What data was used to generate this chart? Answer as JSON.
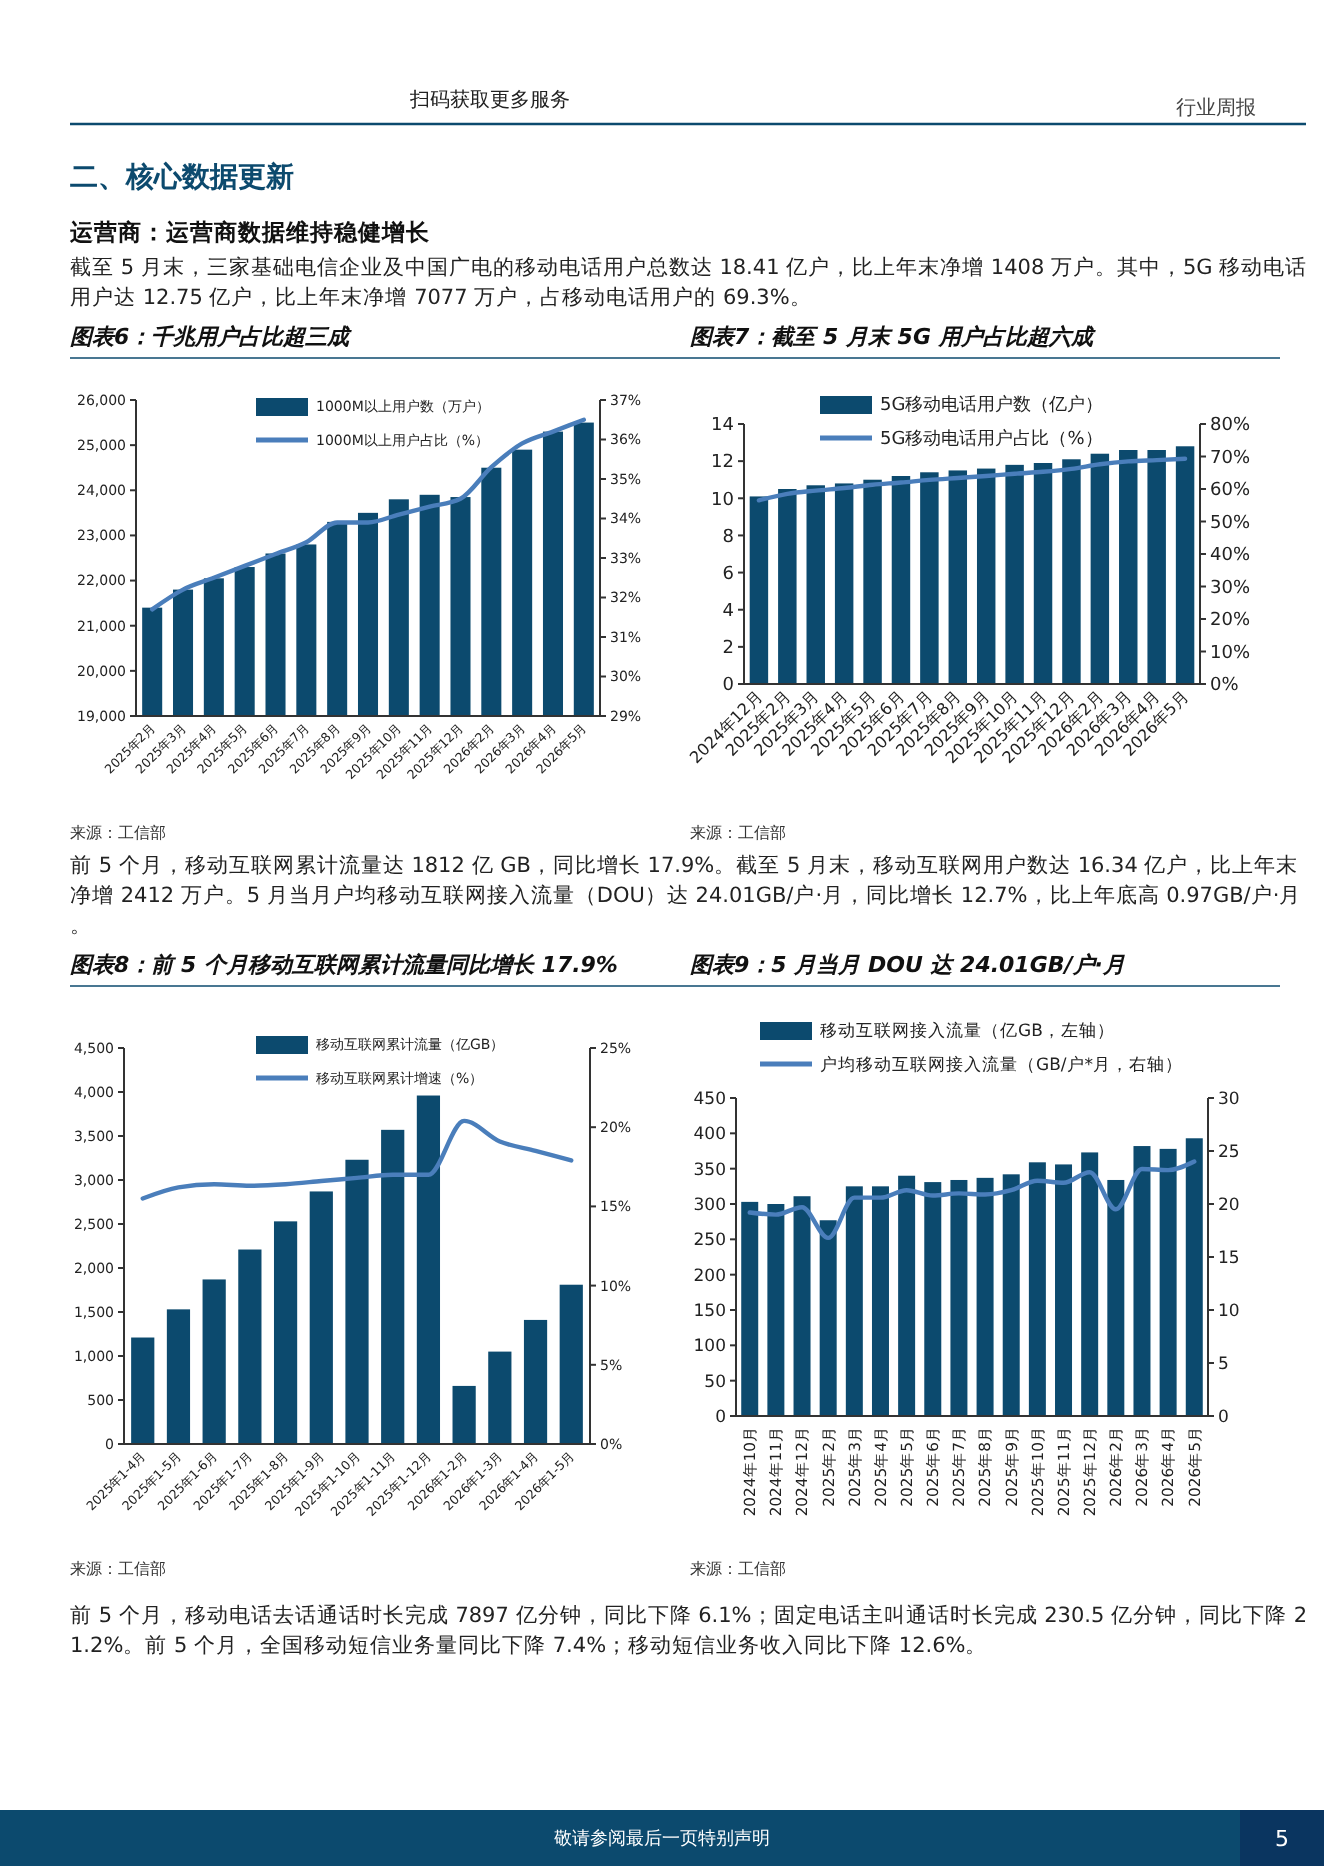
{
  "chart_data": [
    {
      "type": "other",
      "annotations": [
        "扫码获取更多服务",
        "行业周报",
        "二、核心数据更新",
        "运营商：运营商数据维持稳健增长",
        "截至 5 月末，三家基础电信企业及中国广电的移动电话用户总数达 18.41 亿户，比上年末净增 1408 万户。其中，5G 移动电话用户达 12.75 亿户，比上年末净增 7077 万户，占移动电话用户的 69.3%。"
      ]
    },
    {
      "type": "bar",
      "title": "图表6：千兆用户占比超三成",
      "annotations": [
        "来源：工信部"
      ],
      "categories": [
        "2025年2月",
        "2025年3月",
        "2025年4月",
        "2025年5月",
        "2025年6月",
        "2025年7月",
        "2025年8月",
        "2025年9月",
        "2025年10月",
        "2025年11月",
        "2025年12月",
        "2026年2月",
        "2026年3月",
        "2026年4月",
        "2026年5月"
      ],
      "series": [
        {
          "name": "1000M以上用户数（万户）",
          "type": "bar",
          "color": "#0c4a6e",
          "values": [
            21400,
            21800,
            22050,
            22300,
            22600,
            22800,
            23300,
            23500,
            23800,
            23900,
            23850,
            24500,
            24900,
            25300,
            25500
          ]
        },
        {
          "name": "1000M以上用户占比（%）",
          "type": "line",
          "axis": "y2",
          "color": "#4a7ebb",
          "values": [
            31.7,
            32.2,
            32.5,
            32.8,
            33.1,
            33.4,
            33.9,
            33.9,
            34.1,
            34.3,
            34.5,
            35.3,
            35.9,
            36.2,
            36.5
          ]
        }
      ],
      "ylim": [
        19000,
        26000
      ],
      "yticks": [
        {
          "value": 19000,
          "label": "19,000"
        },
        {
          "value": 20000,
          "label": "20,000"
        },
        {
          "value": 21000,
          "label": "21,000"
        },
        {
          "value": 22000,
          "label": "22,000"
        },
        {
          "value": 23000,
          "label": "23,000"
        },
        {
          "value": 24000,
          "label": "24,000"
        },
        {
          "value": 25000,
          "label": "25,000"
        },
        {
          "value": 26000,
          "label": "26,000"
        }
      ],
      "y2lim": [
        29,
        37
      ],
      "y2ticks": [
        {
          "value": 29,
          "label": "29%"
        },
        {
          "value": 30,
          "label": "30%"
        },
        {
          "value": 31,
          "label": "31%"
        },
        {
          "value": 32,
          "label": "32%"
        },
        {
          "value": 33,
          "label": "33%"
        },
        {
          "value": 34,
          "label": "34%"
        },
        {
          "value": 35,
          "label": "35%"
        },
        {
          "value": 36,
          "label": "36%"
        },
        {
          "value": 37,
          "label": "37%"
        }
      ],
      "legend": "top",
      "grid": false
    },
    {
      "type": "bar",
      "title": "图表7：截至 5 月末 5G 用户占比超六成",
      "annotations": [
        "来源：工信部"
      ],
      "categories": [
        "2024年12月",
        "2025年2月",
        "2025年3月",
        "2025年4月",
        "2025年5月",
        "2025年6月",
        "2025年7月",
        "2025年8月",
        "2025年9月",
        "2025年10月",
        "2025年11月",
        "2025年12月",
        "2026年2月",
        "2026年3月",
        "2026年4月",
        "2026年5月"
      ],
      "series": [
        {
          "name": "5G移动电话用户数（亿户）",
          "type": "bar",
          "color": "#0c4a6e",
          "values": [
            10.1,
            10.5,
            10.7,
            10.8,
            11,
            11.2,
            11.4,
            11.5,
            11.6,
            11.8,
            11.9,
            12.1,
            12.4,
            12.6,
            12.6,
            12.8
          ]
        },
        {
          "name": "5G移动电话用户占比（%）",
          "type": "line",
          "axis": "y2",
          "color": "#4a7ebb",
          "values": [
            56.5,
            58.5,
            59.5,
            60.3,
            61.3,
            62,
            62.8,
            63.4,
            64,
            64.7,
            65.3,
            66.2,
            67.6,
            68.5,
            68.9,
            69.3
          ]
        }
      ],
      "ylim": [
        0,
        14
      ],
      "yticks": [
        0,
        2,
        4,
        6,
        8,
        10,
        12,
        14
      ],
      "y2lim": [
        0,
        80
      ],
      "y2ticks": [
        {
          "value": 0,
          "label": "0%"
        },
        {
          "value": 10,
          "label": "10%"
        },
        {
          "value": 20,
          "label": "20%"
        },
        {
          "value": 30,
          "label": "30%"
        },
        {
          "value": 40,
          "label": "40%"
        },
        {
          "value": 50,
          "label": "50%"
        },
        {
          "value": 60,
          "label": "60%"
        },
        {
          "value": 70,
          "label": "70%"
        },
        {
          "value": 80,
          "label": "80%"
        }
      ],
      "legend": "top",
      "grid": false
    },
    {
      "type": "other",
      "annotations": [
        "前 5 个月，移动互联网累计流量达 1812 亿 GB，同比增长 17.9%。截至 5 月末，移动互联网用户数达 16.34 亿户，比上年末净增 2412 万户。5 月当月户均移动互联网接入流量（DOU）达 24.01GB/户·月，同比增长 12.7%，比上年底高 0.97GB/户·月。"
      ]
    },
    {
      "type": "bar",
      "title": "图表8：前 5 个月移动互联网累计流量同比增长 17.9%",
      "annotations": [
        "来源：工信部"
      ],
      "categories": [
        "2025年1-4月",
        "2025年1-5月",
        "2025年1-6月",
        "2025年1-7月",
        "2025年1-8月",
        "2025年1-9月",
        "2025年1-10月",
        "2025年1-11月",
        "2025年1-12月",
        "2026年1-2月",
        "2026年1-3月",
        "2026年1-4月",
        "2026年1-5月"
      ],
      "series": [
        {
          "name": "移动互联网累计流量（亿GB）",
          "type": "bar",
          "color": "#0c4a6e",
          "values": [
            1210,
            1530,
            1870,
            2210,
            2530,
            2870,
            3230,
            3570,
            3960,
            660,
            1050,
            1410,
            1810
          ]
        },
        {
          "name": "移动互联网累计增速（%）",
          "type": "line",
          "axis": "y2",
          "color": "#4a7ebb",
          "values": [
            15.5,
            16.2,
            16.4,
            16.3,
            16.4,
            16.6,
            16.8,
            17,
            17,
            20.4,
            19.1,
            18.5,
            17.9
          ]
        }
      ],
      "ylim": [
        0,
        4500
      ],
      "yticks": [
        0,
        500,
        {
          "value": 1000,
          "label": "1,000"
        },
        {
          "value": 1500,
          "label": "1,500"
        },
        {
          "value": 2000,
          "label": "2,000"
        },
        {
          "value": 2500,
          "label": "2,500"
        },
        {
          "value": 3000,
          "label": "3,000"
        },
        {
          "value": 3500,
          "label": "3,500"
        },
        {
          "value": 4000,
          "label": "4,000"
        },
        {
          "value": 4500,
          "label": "4,500"
        }
      ],
      "y2lim": [
        0,
        25
      ],
      "y2ticks": [
        {
          "value": 0,
          "label": "0%"
        },
        {
          "value": 5,
          "label": "5%"
        },
        {
          "value": 10,
          "label": "10%"
        },
        {
          "value": 15,
          "label": "15%"
        },
        {
          "value": 20,
          "label": "20%"
        },
        {
          "value": 25,
          "label": "25%"
        }
      ],
      "legend": "top",
      "grid": false
    },
    {
      "type": "bar",
      "title": "图表9：5 月当月 DOU 达 24.01GB/户·月",
      "annotations": [
        "来源：工信部"
      ],
      "categories": [
        "2024年10月",
        "2024年11月",
        "2024年12月",
        "2025年2月",
        "2025年3月",
        "2025年4月",
        "2025年5月",
        "2025年6月",
        "2025年7月",
        "2025年8月",
        "2025年9月",
        "2025年10月",
        "2025年11月",
        "2025年12月",
        "2026年2月",
        "2026年3月",
        "2026年4月",
        "2026年5月"
      ],
      "series": [
        {
          "name": "移动互联网接入流量（亿GB，左轴）",
          "type": "bar",
          "color": "#0c4a6e",
          "values": [
            303,
            300,
            311,
            277,
            325,
            325,
            340,
            331,
            334,
            337,
            342,
            359,
            356,
            373,
            334,
            382,
            378,
            393
          ]
        },
        {
          "name": "户均移动互联网接入流量（GB/户*月，右轴）",
          "type": "line",
          "axis": "y2",
          "color": "#4a7ebb",
          "values": [
            19.2,
            19,
            19.7,
            16.8,
            20.6,
            20.6,
            21.3,
            20.8,
            21,
            20.9,
            21.3,
            22.2,
            22,
            23,
            19.5,
            23.3,
            23.2,
            24
          ]
        }
      ],
      "ylim": [
        0,
        450
      ],
      "yticks": [
        0,
        50,
        100,
        150,
        200,
        250,
        300,
        350,
        400,
        450
      ],
      "y2lim": [
        0,
        30
      ],
      "y2ticks": [
        0,
        5,
        10,
        15,
        20,
        25,
        30
      ],
      "legend": "top",
      "grid": false
    },
    {
      "type": "other",
      "annotations": [
        "前 5 个月，移动电话去话通话时长完成 7897 亿分钟，同比下降 6.1%；固定电话主叫通话时长完成 230.5 亿分钟，同比下降 21.2%。前 5 个月，全国移动短信业务量同比下降 7.4%；移动短信业务收入同比下降 12.6%。",
        "敬请参阅最后一页特别声明",
        "5"
      ]
    }
  ]
}
